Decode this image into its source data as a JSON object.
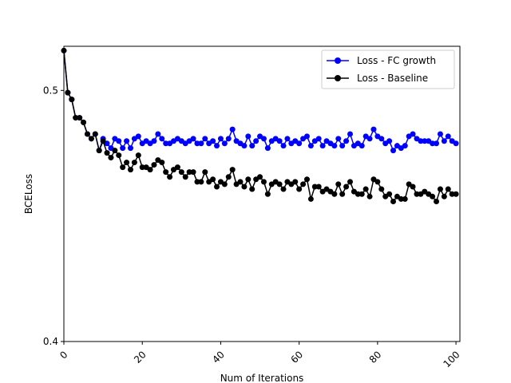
{
  "chart_data": {
    "type": "line",
    "title": "",
    "xlabel": "Num of Iterations",
    "ylabel": "BCELoss",
    "xlim": [
      0,
      101
    ],
    "ylim": [
      0.4,
      0.52
    ],
    "y_scale": "log",
    "x_ticks": [
      0,
      20,
      40,
      60,
      80,
      100
    ],
    "x_tick_labels": [
      "0",
      "20",
      "40",
      "60",
      "80",
      "100"
    ],
    "y_ticks": [
      0.4,
      0.5
    ],
    "y_tick_labels": [
      "0.4",
      "0.5"
    ],
    "x_tick_rotation": 45,
    "grid": false,
    "legend_position": "top-right",
    "series": [
      {
        "name": "Loss - FC growth",
        "color": "#0000ff",
        "values": [
          0.518,
          0.499,
          0.496,
          0.488,
          0.488,
          0.486,
          0.481,
          0.479,
          0.481,
          0.474,
          0.479,
          0.477,
          0.475,
          0.479,
          0.478,
          0.475,
          0.478,
          0.475,
          0.479,
          0.48,
          0.477,
          0.478,
          0.477,
          0.478,
          0.481,
          0.479,
          0.477,
          0.477,
          0.478,
          0.479,
          0.478,
          0.477,
          0.478,
          0.479,
          0.477,
          0.477,
          0.479,
          0.477,
          0.478,
          0.476,
          0.479,
          0.477,
          0.479,
          0.483,
          0.478,
          0.477,
          0.476,
          0.48,
          0.476,
          0.478,
          0.48,
          0.479,
          0.475,
          0.478,
          0.479,
          0.478,
          0.476,
          0.479,
          0.477,
          0.478,
          0.477,
          0.479,
          0.48,
          0.476,
          0.478,
          0.479,
          0.476,
          0.478,
          0.477,
          0.476,
          0.479,
          0.476,
          0.478,
          0.481,
          0.476,
          0.477,
          0.476,
          0.48,
          0.479,
          0.483,
          0.48,
          0.479,
          0.477,
          0.478,
          0.474,
          0.476,
          0.475,
          0.476,
          0.48,
          0.481,
          0.479,
          0.478,
          0.478,
          0.478,
          0.477,
          0.477,
          0.481,
          0.478,
          0.48,
          0.478,
          0.477
        ]
      },
      {
        "name": "Loss - Baseline",
        "color": "#000000",
        "values": [
          0.518,
          0.499,
          0.496,
          0.488,
          0.488,
          0.486,
          0.481,
          0.479,
          0.481,
          0.474,
          0.478,
          0.473,
          0.471,
          0.474,
          0.472,
          0.467,
          0.469,
          0.466,
          0.469,
          0.472,
          0.467,
          0.467,
          0.466,
          0.468,
          0.47,
          0.469,
          0.465,
          0.463,
          0.466,
          0.467,
          0.465,
          0.463,
          0.465,
          0.465,
          0.461,
          0.461,
          0.465,
          0.461,
          0.462,
          0.459,
          0.461,
          0.46,
          0.463,
          0.466,
          0.46,
          0.461,
          0.459,
          0.462,
          0.458,
          0.462,
          0.463,
          0.461,
          0.456,
          0.46,
          0.461,
          0.46,
          0.458,
          0.461,
          0.46,
          0.461,
          0.458,
          0.46,
          0.462,
          0.454,
          0.459,
          0.459,
          0.457,
          0.458,
          0.457,
          0.456,
          0.46,
          0.456,
          0.459,
          0.461,
          0.457,
          0.456,
          0.456,
          0.458,
          0.455,
          0.462,
          0.461,
          0.458,
          0.455,
          0.456,
          0.453,
          0.455,
          0.454,
          0.454,
          0.46,
          0.459,
          0.456,
          0.456,
          0.457,
          0.456,
          0.455,
          0.453,
          0.458,
          0.455,
          0.458,
          0.456,
          0.456
        ]
      }
    ]
  }
}
